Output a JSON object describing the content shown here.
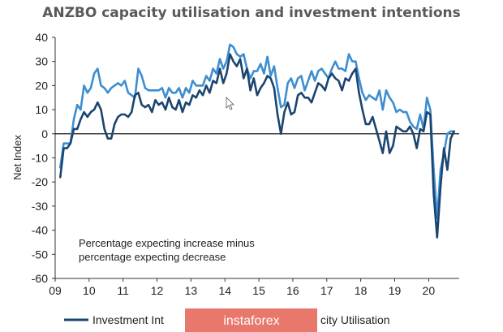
{
  "chart_data": {
    "type": "line",
    "title": "ANZBO capacity utilisation and investment intentions",
    "xlabel": "",
    "ylabel": "Net Index",
    "ylim": [
      -60,
      40
    ],
    "yticks": [
      40,
      30,
      20,
      10,
      0,
      -10,
      -20,
      -30,
      -40,
      -50,
      -60
    ],
    "xlim": [
      2009,
      2020.9
    ],
    "xticks": [
      "09",
      "10",
      "11",
      "12",
      "13",
      "14",
      "15",
      "16",
      "17",
      "18",
      "19",
      "20"
    ],
    "annotation": [
      "Percentage expecting increase minus",
      "percentage expecting decrease"
    ],
    "legend_position": "bottom",
    "series": [
      {
        "name": "Investment Intentions",
        "color": "#1b4470",
        "x": [
          2009.15,
          2009.25,
          2009.35,
          2009.45,
          2009.55,
          2009.65,
          2009.75,
          2009.85,
          2009.95,
          2010.05,
          2010.15,
          2010.25,
          2010.35,
          2010.45,
          2010.55,
          2010.65,
          2010.75,
          2010.85,
          2010.95,
          2011.05,
          2011.15,
          2011.25,
          2011.35,
          2011.45,
          2011.55,
          2011.65,
          2011.75,
          2011.85,
          2011.95,
          2012.05,
          2012.15,
          2012.25,
          2012.35,
          2012.45,
          2012.55,
          2012.65,
          2012.75,
          2012.85,
          2012.95,
          2013.05,
          2013.15,
          2013.25,
          2013.35,
          2013.45,
          2013.55,
          2013.65,
          2013.75,
          2013.85,
          2013.95,
          2014.05,
          2014.15,
          2014.25,
          2014.35,
          2014.45,
          2014.55,
          2014.65,
          2014.75,
          2014.85,
          2014.95,
          2015.05,
          2015.15,
          2015.25,
          2015.35,
          2015.45,
          2015.55,
          2015.65,
          2015.75,
          2015.85,
          2015.95,
          2016.05,
          2016.15,
          2016.25,
          2016.35,
          2016.45,
          2016.55,
          2016.65,
          2016.75,
          2016.85,
          2016.95,
          2017.05,
          2017.15,
          2017.25,
          2017.35,
          2017.45,
          2017.55,
          2017.65,
          2017.75,
          2017.85,
          2017.95,
          2018.05,
          2018.15,
          2018.25,
          2018.35,
          2018.45,
          2018.55,
          2018.65,
          2018.75,
          2018.85,
          2018.95,
          2019.05,
          2019.15,
          2019.25,
          2019.35,
          2019.45,
          2019.55,
          2019.65,
          2019.75,
          2019.85,
          2019.95,
          2020.05,
          2020.15,
          2020.25,
          2020.35,
          2020.45,
          2020.55,
          2020.65,
          2020.75
        ],
        "values": [
          -18,
          -6,
          -6,
          -4,
          2,
          2,
          6,
          9,
          7,
          9,
          10,
          13,
          10,
          2,
          -2,
          -2,
          4,
          7,
          8,
          8,
          7,
          9,
          16,
          17,
          12,
          11,
          12,
          9,
          14,
          12,
          13,
          10,
          15,
          11,
          10,
          14,
          9,
          13,
          12,
          16,
          15,
          18,
          16,
          20,
          17,
          22,
          21,
          27,
          21,
          25,
          33,
          30,
          28,
          31,
          23,
          27,
          18,
          23,
          16,
          19,
          21,
          24,
          23,
          19,
          8,
          0,
          9,
          13,
          8,
          9,
          16,
          17,
          15,
          15,
          13,
          17,
          21,
          20,
          18,
          23,
          25,
          23,
          22,
          18,
          23,
          22,
          25,
          27,
          17,
          10,
          4,
          4,
          7,
          2,
          -3,
          -8,
          1,
          -8,
          -5,
          3,
          2,
          1,
          1,
          3,
          0,
          -6,
          2,
          1,
          9,
          8,
          -25,
          -43,
          -22,
          -6,
          -15,
          -2,
          1
        ]
      },
      {
        "name": "Capacity Utilisation",
        "color": "#3d8ed1",
        "x": [
          2009.15,
          2009.25,
          2009.35,
          2009.45,
          2009.55,
          2009.65,
          2009.75,
          2009.85,
          2009.95,
          2010.05,
          2010.15,
          2010.25,
          2010.35,
          2010.45,
          2010.55,
          2010.65,
          2010.75,
          2010.85,
          2010.95,
          2011.05,
          2011.15,
          2011.25,
          2011.35,
          2011.45,
          2011.55,
          2011.65,
          2011.75,
          2011.85,
          2011.95,
          2012.05,
          2012.15,
          2012.25,
          2012.35,
          2012.45,
          2012.55,
          2012.65,
          2012.75,
          2012.85,
          2012.95,
          2013.05,
          2013.15,
          2013.25,
          2013.35,
          2013.45,
          2013.55,
          2013.65,
          2013.75,
          2013.85,
          2013.95,
          2014.05,
          2014.15,
          2014.25,
          2014.35,
          2014.45,
          2014.55,
          2014.65,
          2014.75,
          2014.85,
          2014.95,
          2015.05,
          2015.15,
          2015.25,
          2015.35,
          2015.45,
          2015.55,
          2015.65,
          2015.75,
          2015.85,
          2015.95,
          2016.05,
          2016.15,
          2016.25,
          2016.35,
          2016.45,
          2016.55,
          2016.65,
          2016.75,
          2016.85,
          2016.95,
          2017.05,
          2017.15,
          2017.25,
          2017.35,
          2017.45,
          2017.55,
          2017.65,
          2017.75,
          2017.85,
          2017.95,
          2018.05,
          2018.15,
          2018.25,
          2018.35,
          2018.45,
          2018.55,
          2018.65,
          2018.75,
          2018.85,
          2018.95,
          2019.05,
          2019.15,
          2019.25,
          2019.35,
          2019.45,
          2019.55,
          2019.65,
          2019.75,
          2019.85,
          2019.95,
          2020.05,
          2020.15,
          2020.25,
          2020.35,
          2020.45,
          2020.55,
          2020.65,
          2020.75
        ],
        "values": [
          -14,
          -4,
          -4,
          -4,
          6,
          12,
          10,
          20,
          17,
          19,
          25,
          27,
          20,
          19,
          17,
          19,
          20,
          21,
          20,
          22,
          17,
          16,
          15,
          27,
          24,
          19,
          18,
          18,
          18,
          18,
          19,
          15,
          19,
          17,
          17,
          19,
          15,
          19,
          17,
          22,
          20,
          20,
          20,
          24,
          22,
          27,
          25,
          31,
          27,
          30,
          37,
          36,
          33,
          32,
          33,
          27,
          23,
          26,
          26,
          29,
          25,
          32,
          24,
          28,
          19,
          11,
          12,
          21,
          23,
          19,
          23,
          24,
          18,
          22,
          26,
          22,
          26,
          27,
          25,
          23,
          27,
          30,
          27,
          27,
          26,
          33,
          30,
          30,
          23,
          17,
          14,
          16,
          15,
          14,
          18,
          10,
          18,
          15,
          13,
          9,
          10,
          9,
          9,
          5,
          3,
          2,
          8,
          2,
          15,
          10,
          -15,
          -35,
          -15,
          -8,
          0,
          1,
          1
        ]
      }
    ]
  },
  "legend": {
    "items": [
      "Investment Int",
      "city Utilisation"
    ]
  },
  "watermark": {
    "text": "instaforex",
    "color": "#e8776c"
  }
}
